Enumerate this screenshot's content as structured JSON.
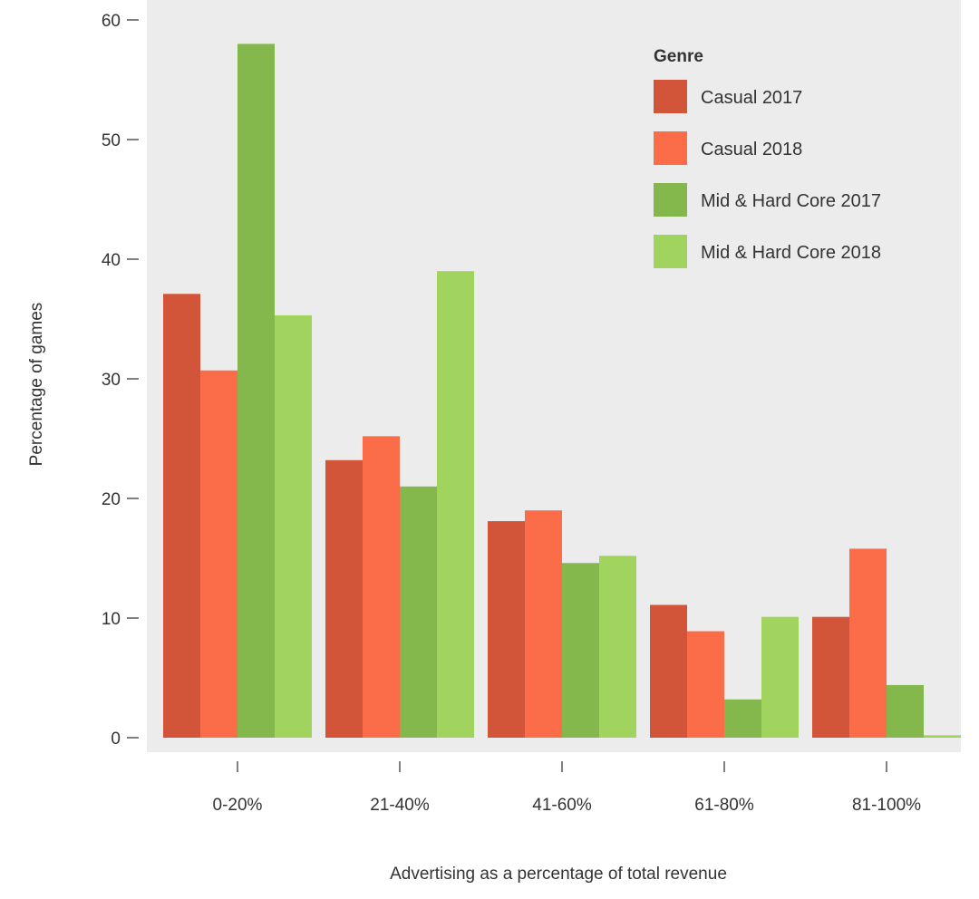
{
  "chart_data": {
    "type": "bar",
    "title": "",
    "xlabel": "Advertising as a percentage of total revenue",
    "ylabel": "Percentage of games",
    "ylim": [
      0,
      60
    ],
    "yticks": [
      0,
      10,
      20,
      30,
      40,
      50,
      60
    ],
    "grid": false,
    "legend": {
      "title": "Genre",
      "placement": "top-right"
    },
    "categories": [
      "0-20%",
      "21-40%",
      "41-60%",
      "61-80%",
      "81-100%"
    ],
    "series": [
      {
        "name": "Casual 2017",
        "color": "#d2553a",
        "values": [
          37.1,
          23.2,
          18.1,
          11.1,
          10.1
        ]
      },
      {
        "name": "Casual 2018",
        "color": "#fb6c48",
        "values": [
          30.7,
          25.2,
          19.0,
          8.9,
          15.8
        ]
      },
      {
        "name": "Mid & Hard Core 2017",
        "color": "#84b84c",
        "values": [
          58.0,
          21.0,
          14.6,
          3.2,
          4.4
        ]
      },
      {
        "name": "Mid & Hard Core 2018",
        "color": "#a0d45f",
        "values": [
          35.3,
          39.0,
          15.2,
          10.1,
          0.2
        ]
      }
    ]
  }
}
